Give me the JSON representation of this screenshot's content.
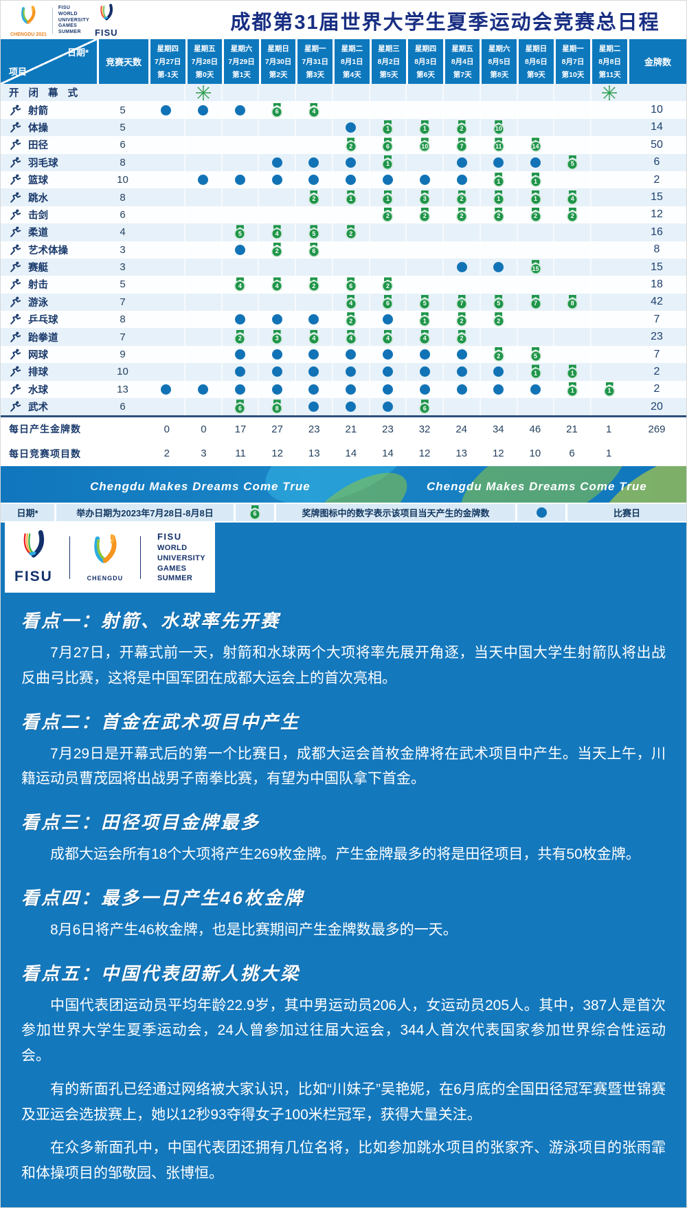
{
  "colors": {
    "header_blue": "#0e78bd",
    "medal_green": "#1f9549",
    "dot_blue": "#1173b6",
    "navy": "#1a3a6b",
    "bg_blue": "#1478bd",
    "title_blue": "#182e83"
  },
  "header": {
    "title": "成都第31届世界大学生夏季运动会竞赛总日程",
    "chengdu_logo_caption": "CHENGDU 2021",
    "fisu_block_lines": [
      "FISU",
      "WORLD",
      "UNIVERSITY",
      "GAMES",
      "SUMMER"
    ],
    "fisu_wordmark": "FISU"
  },
  "table": {
    "corner": {
      "date": "日期*",
      "item": "项目"
    },
    "days_col_header": "竞赛天数",
    "gold_col_header": "金牌数",
    "date_columns": [
      {
        "weekday": "星期四",
        "date": "7月27日",
        "day": "第-1天"
      },
      {
        "weekday": "星期五",
        "date": "7月28日",
        "day": "第0天"
      },
      {
        "weekday": "星期六",
        "date": "7月29日",
        "day": "第1天"
      },
      {
        "weekday": "星期日",
        "date": "7月30日",
        "day": "第2天"
      },
      {
        "weekday": "星期一",
        "date": "7月31日",
        "day": "第3天"
      },
      {
        "weekday": "星期二",
        "date": "8月1日",
        "day": "第4天"
      },
      {
        "weekday": "星期三",
        "date": "8月2日",
        "day": "第5天"
      },
      {
        "weekday": "星期四",
        "date": "8月3日",
        "day": "第6天"
      },
      {
        "weekday": "星期五",
        "date": "8月4日",
        "day": "第7天"
      },
      {
        "weekday": "星期六",
        "date": "8月5日",
        "day": "第8天"
      },
      {
        "weekday": "星期日",
        "date": "8月6日",
        "day": "第9天"
      },
      {
        "weekday": "星期一",
        "date": "8月7日",
        "day": "第10天"
      },
      {
        "weekday": "星期二",
        "date": "8月8日",
        "day": "第11天"
      }
    ],
    "ceremony_row": {
      "label": "开 闭 幕 式",
      "cells": [
        null,
        "f",
        null,
        null,
        null,
        null,
        null,
        null,
        null,
        null,
        null,
        null,
        "f"
      ]
    },
    "sports": [
      {
        "name": "射箭",
        "icon": "archery-icon",
        "days": 5,
        "gold": 10,
        "cells": [
          "d",
          "d",
          "d",
          6,
          4,
          null,
          null,
          null,
          null,
          null,
          null,
          null,
          null
        ]
      },
      {
        "name": "体操",
        "icon": "gymnastics-icon",
        "days": 5,
        "gold": 14,
        "cells": [
          null,
          null,
          null,
          null,
          null,
          "d",
          1,
          1,
          2,
          10,
          null,
          null,
          null
        ]
      },
      {
        "name": "田径",
        "icon": "athletics-icon",
        "days": 6,
        "gold": 50,
        "cells": [
          null,
          null,
          null,
          null,
          null,
          2,
          6,
          10,
          7,
          11,
          14,
          null,
          null
        ]
      },
      {
        "name": "羽毛球",
        "icon": "badminton-icon",
        "days": 8,
        "gold": 6,
        "cells": [
          null,
          null,
          null,
          "d",
          "d",
          "d",
          1,
          null,
          "d",
          "d",
          "d",
          5,
          null
        ]
      },
      {
        "name": "篮球",
        "icon": "basketball-icon",
        "days": 10,
        "gold": 2,
        "cells": [
          null,
          "d",
          "d",
          "d",
          "d",
          "d",
          "d",
          "d",
          "d",
          1,
          1,
          null,
          null
        ]
      },
      {
        "name": "跳水",
        "icon": "diving-icon",
        "days": 8,
        "gold": 15,
        "cells": [
          null,
          null,
          null,
          null,
          2,
          1,
          1,
          3,
          2,
          1,
          1,
          4,
          null
        ]
      },
      {
        "name": "击剑",
        "icon": "fencing-icon",
        "days": 6,
        "gold": 12,
        "cells": [
          null,
          null,
          null,
          null,
          null,
          null,
          2,
          2,
          2,
          2,
          2,
          2,
          null
        ]
      },
      {
        "name": "柔道",
        "icon": "judo-icon",
        "days": 4,
        "gold": 16,
        "cells": [
          null,
          null,
          5,
          4,
          5,
          2,
          null,
          null,
          null,
          null,
          null,
          null,
          null
        ]
      },
      {
        "name": "艺术体操",
        "icon": "rhythmic-gymnastics-icon",
        "days": 3,
        "gold": 8,
        "cells": [
          null,
          null,
          "d",
          2,
          6,
          null,
          null,
          null,
          null,
          null,
          null,
          null,
          null
        ]
      },
      {
        "name": "赛艇",
        "icon": "rowing-icon",
        "days": 3,
        "gold": 15,
        "cells": [
          null,
          null,
          null,
          null,
          null,
          null,
          null,
          null,
          "d",
          "d",
          15,
          null,
          null
        ]
      },
      {
        "name": "射击",
        "icon": "shooting-icon",
        "days": 5,
        "gold": 18,
        "cells": [
          null,
          null,
          4,
          4,
          2,
          6,
          2,
          null,
          null,
          null,
          null,
          null,
          null
        ]
      },
      {
        "name": "游泳",
        "icon": "swimming-icon",
        "days": 7,
        "gold": 42,
        "cells": [
          null,
          null,
          null,
          null,
          null,
          4,
          6,
          5,
          7,
          5,
          7,
          8,
          null
        ]
      },
      {
        "name": "乒乓球",
        "icon": "table-tennis-icon",
        "days": 8,
        "gold": 7,
        "cells": [
          null,
          null,
          "d",
          "d",
          "d",
          2,
          "d",
          1,
          2,
          2,
          null,
          null,
          null
        ]
      },
      {
        "name": "跆拳道",
        "icon": "taekwondo-icon",
        "days": 7,
        "gold": 23,
        "cells": [
          null,
          null,
          2,
          3,
          4,
          4,
          4,
          4,
          2,
          null,
          null,
          null,
          null
        ]
      },
      {
        "name": "网球",
        "icon": "tennis-icon",
        "days": 9,
        "gold": 7,
        "cells": [
          null,
          null,
          "d",
          "d",
          "d",
          "d",
          "d",
          "d",
          "d",
          2,
          5,
          null,
          null
        ]
      },
      {
        "name": "排球",
        "icon": "volleyball-icon",
        "days": 10,
        "gold": 2,
        "cells": [
          null,
          null,
          "d",
          "d",
          "d",
          "d",
          "d",
          "d",
          "d",
          "d",
          1,
          1,
          null
        ]
      },
      {
        "name": "水球",
        "icon": "water-polo-icon",
        "days": 13,
        "gold": 2,
        "cells": [
          "d",
          "d",
          "d",
          "d",
          "d",
          "d",
          "d",
          "d",
          "d",
          "d",
          "d",
          1,
          1
        ]
      },
      {
        "name": "武术",
        "icon": "wushu-icon",
        "days": 6,
        "gold": 20,
        "cells": [
          null,
          null,
          6,
          8,
          "d",
          "d",
          "d",
          6,
          null,
          null,
          null,
          null,
          null
        ]
      }
    ],
    "daily_gold": {
      "label": "每日产生金牌数",
      "values": [
        0,
        0,
        17,
        27,
        23,
        21,
        23,
        32,
        24,
        34,
        46,
        21,
        1
      ],
      "total": 269
    },
    "daily_events": {
      "label": "每日竞赛项目数",
      "values": [
        2,
        3,
        11,
        12,
        13,
        14,
        14,
        12,
        13,
        12,
        10,
        6,
        1
      ],
      "total": ""
    }
  },
  "banner": {
    "text": "Chengdu Makes Dreams Come True"
  },
  "legend": {
    "date_label": "日期*",
    "date_text": "举办日期为2023年7月28日-8月8日",
    "medal_icon_number": "6",
    "medal_text": "奖牌图标中的数字表示该项目当天产生的金牌数",
    "dot_text": "比赛日"
  },
  "logo_block": {
    "fisu_wordmark": "FISU",
    "chengdu_caption": "CHENGDU",
    "fisu_block_lines": [
      "FISU",
      "WORLD",
      "UNIVERSITY",
      "GAMES",
      "SUMMER"
    ]
  },
  "highlights": [
    {
      "heading": "看点一：射箭、水球率先开赛",
      "paragraphs": [
        "7月27日，开幕式前一天，射箭和水球两个大项将率先展开角逐，当天中国大学生射箭队将出战反曲弓比赛，这将是中国军团在成都大运会上的首次亮相。"
      ]
    },
    {
      "heading": "看点二：首金在武术项目中产生",
      "paragraphs": [
        "7月29日是开幕式后的第一个比赛日，成都大运会首枚金牌将在武术项目中产生。当天上午，川籍运动员曹茂园将出战男子南拳比赛，有望为中国队拿下首金。"
      ]
    },
    {
      "heading": "看点三：田径项目金牌最多",
      "paragraphs": [
        "成都大运会所有18个大项将产生269枚金牌。产生金牌最多的将是田径项目，共有50枚金牌。"
      ]
    },
    {
      "heading": "看点四：最多一日产生46枚金牌",
      "paragraphs": [
        "8月6日将产生46枚金牌，也是比赛期间产生金牌数最多的一天。"
      ]
    },
    {
      "heading": "看点五：中国代表团新人挑大梁",
      "paragraphs": [
        "中国代表团运动员平均年龄22.9岁，其中男运动员206人，女运动员205人。其中，387人是首次参加世界大学生夏季运动会，24人曾参加过往届大运会，344人首次代表国家参加世界综合性运动会。",
        "有的新面孔已经通过网络被大家认识，比如“川妹子”吴艳妮，在6月底的全国田径冠军赛暨世锦赛及亚运会选拔赛上，她以12秒93夺得女子100米栏冠军，获得大量关注。",
        "在众多新面孔中，中国代表团还拥有几位名将，比如参加跳水项目的张家齐、游泳项目的张雨霏和体操项目的邹敬园、张博恒。"
      ]
    }
  ]
}
